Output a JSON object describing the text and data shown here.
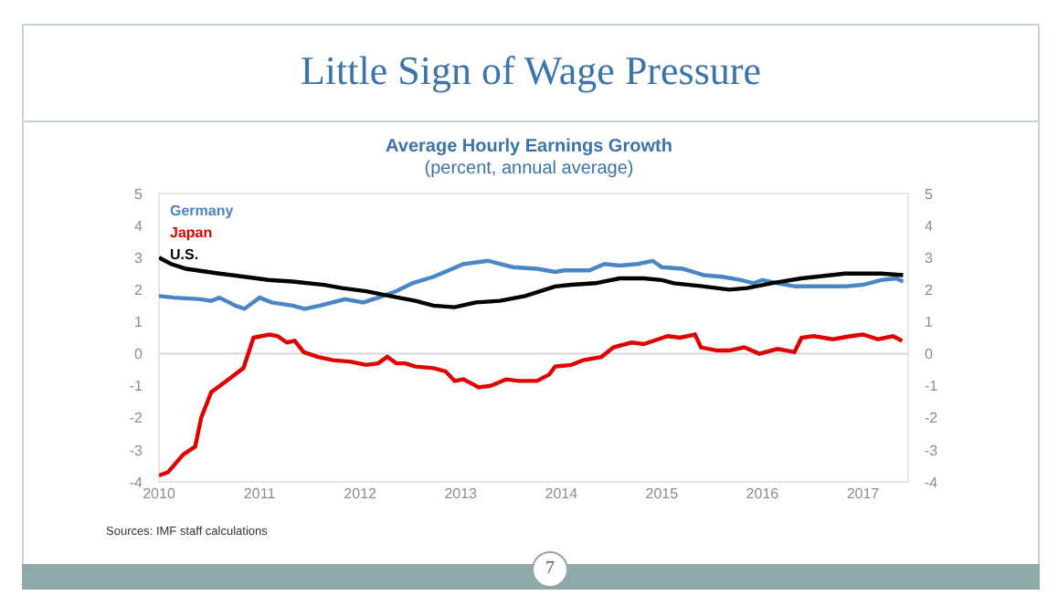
{
  "chart_data": {
    "type": "line",
    "title": "Little Sign of Wage Pressure",
    "subtitle": "Average Hourly Earnings Growth",
    "ylabel": "(percent, annual average)",
    "annotations": [
      "Sources: IMF staff calculations",
      "7"
    ],
    "xlim": [
      2010,
      2017.45
    ],
    "xticks": [
      2010,
      2011,
      2012,
      2013,
      2014,
      2015,
      2016,
      2017
    ],
    "ylim": [
      -4,
      5
    ],
    "yticks": [
      -4,
      -3,
      -2,
      -1,
      0,
      1,
      2,
      3,
      4,
      5
    ],
    "y2lim": [
      -4,
      5
    ],
    "y2ticks": [
      -4,
      -3,
      -2,
      -1,
      0,
      1,
      2,
      3,
      4,
      5
    ],
    "grid": false,
    "legend": "top left",
    "marker": "none",
    "line_style": "solid",
    "ref_lines": [
      {
        "axis": "y",
        "value": 0,
        "color": "#d9d9d9"
      }
    ],
    "series": [
      {
        "name": "Germany",
        "color": "#4a86c5",
        "x": [
          2010,
          2010.15,
          2010.42,
          2010.52,
          2010.6,
          2010.76,
          2010.85,
          2011.0,
          2011.12,
          2011.33,
          2011.45,
          2011.6,
          2011.85,
          2012.03,
          2012.18,
          2012.36,
          2012.52,
          2012.73,
          2012.88,
          2013.03,
          2013.27,
          2013.39,
          2013.52,
          2013.76,
          2013.94,
          2014.03,
          2014.1,
          2014.28,
          2014.43,
          2014.58,
          2014.76,
          2014.91,
          2015.0,
          2015.21,
          2015.42,
          2015.6,
          2015.79,
          2015.91,
          2016.0,
          2016.15,
          2016.33,
          2016.57,
          2016.82,
          2017.0,
          2017.18,
          2017.33,
          2017.4
        ],
        "values": [
          1.8,
          1.75,
          1.7,
          1.65,
          1.75,
          1.5,
          1.4,
          1.75,
          1.6,
          1.5,
          1.4,
          1.5,
          1.7,
          1.6,
          1.75,
          1.95,
          2.2,
          2.4,
          2.6,
          2.8,
          2.9,
          2.8,
          2.7,
          2.65,
          2.55,
          2.6,
          2.6,
          2.6,
          2.8,
          2.75,
          2.8,
          2.9,
          2.7,
          2.65,
          2.45,
          2.4,
          2.3,
          2.2,
          2.3,
          2.2,
          2.1,
          2.1,
          2.1,
          2.15,
          2.3,
          2.35,
          2.25
        ]
      },
      {
        "name": "Japan",
        "color": "#e00000",
        "x": [
          2010,
          2010.09,
          2010.24,
          2010.36,
          2010.42,
          2010.52,
          2010.67,
          2010.84,
          2010.94,
          2011.1,
          2011.18,
          2011.27,
          2011.35,
          2011.44,
          2011.58,
          2011.73,
          2011.91,
          2012.06,
          2012.18,
          2012.27,
          2012.36,
          2012.45,
          2012.55,
          2012.73,
          2012.85,
          2012.94,
          2013.03,
          2013.12,
          2013.18,
          2013.3,
          2013.45,
          2013.58,
          2013.76,
          2013.88,
          2013.94,
          2014.1,
          2014.22,
          2014.4,
          2014.52,
          2014.7,
          2014.82,
          2015.06,
          2015.18,
          2015.33,
          2015.39,
          2015.55,
          2015.67,
          2015.82,
          2015.97,
          2016.15,
          2016.32,
          2016.39,
          2016.51,
          2016.7,
          2016.88,
          2017.0,
          2017.15,
          2017.3,
          2017.39
        ],
        "values": [
          -3.8,
          -3.7,
          -3.15,
          -2.9,
          -2.0,
          -1.2,
          -0.85,
          -0.45,
          0.5,
          0.6,
          0.55,
          0.35,
          0.4,
          0.05,
          -0.1,
          -0.2,
          -0.25,
          -0.35,
          -0.3,
          -0.1,
          -0.3,
          -0.3,
          -0.4,
          -0.45,
          -0.55,
          -0.85,
          -0.8,
          -0.95,
          -1.05,
          -1.0,
          -0.8,
          -0.85,
          -0.85,
          -0.65,
          -0.4,
          -0.35,
          -0.2,
          -0.1,
          0.2,
          0.35,
          0.3,
          0.55,
          0.5,
          0.6,
          0.2,
          0.1,
          0.1,
          0.2,
          0,
          0.15,
          0.05,
          0.5,
          0.55,
          0.45,
          0.55,
          0.6,
          0.45,
          0.55,
          0.4
        ]
      },
      {
        "name": "U.S.",
        "color": "#000000",
        "x": [
          2010,
          2010.12,
          2010.27,
          2010.6,
          2010.85,
          2011.09,
          2011.33,
          2011.64,
          2011.82,
          2012.06,
          2012.3,
          2012.55,
          2012.73,
          2012.94,
          2013.15,
          2013.39,
          2013.64,
          2013.94,
          2014.1,
          2014.34,
          2014.58,
          2014.82,
          2015.0,
          2015.12,
          2015.42,
          2015.67,
          2015.85,
          2016.09,
          2016.39,
          2016.82,
          2017.18,
          2017.4
        ],
        "values": [
          3.0,
          2.8,
          2.65,
          2.5,
          2.4,
          2.3,
          2.25,
          2.15,
          2.05,
          1.95,
          1.8,
          1.65,
          1.5,
          1.45,
          1.6,
          1.65,
          1.8,
          2.1,
          2.15,
          2.2,
          2.35,
          2.35,
          2.3,
          2.2,
          2.1,
          2.0,
          2.05,
          2.2,
          2.35,
          2.5,
          2.5,
          2.45
        ]
      }
    ]
  }
}
